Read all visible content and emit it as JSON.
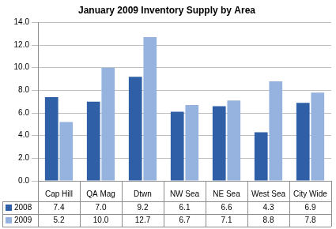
{
  "chart_data": {
    "type": "bar",
    "title": "January 2009 Inventory Supply by Area",
    "categories": [
      "Cap Hill",
      "QA Mag",
      "Dtwn",
      "NW Sea",
      "NE Sea",
      "West Sea",
      "City Wide"
    ],
    "series": [
      {
        "name": "2008",
        "color": "#2f5fa7",
        "values": [
          7.4,
          7.0,
          9.2,
          6.1,
          6.6,
          4.3,
          6.9
        ],
        "value_labels": [
          "7.4",
          "7.0",
          "9.2",
          "6.1",
          "6.6",
          "4.3",
          "6.9"
        ]
      },
      {
        "name": "2009",
        "color": "#95b3de",
        "values": [
          5.2,
          10.0,
          12.7,
          6.7,
          7.1,
          8.8,
          7.8
        ],
        "value_labels": [
          "5.2",
          "10.0",
          "12.7",
          "6.7",
          "7.1",
          "8.8",
          "7.8"
        ]
      }
    ],
    "ylim": [
      0,
      14
    ],
    "yticks": [
      {
        "value": 0,
        "label": "0.0"
      },
      {
        "value": 2,
        "label": "2.0"
      },
      {
        "value": 4,
        "label": "4.0"
      },
      {
        "value": 6,
        "label": "6.0"
      },
      {
        "value": 8,
        "label": "8.0"
      },
      {
        "value": 10,
        "label": "10.0"
      },
      {
        "value": 12,
        "label": "12.0"
      },
      {
        "value": 14,
        "label": "14.0"
      }
    ],
    "grid": true
  }
}
